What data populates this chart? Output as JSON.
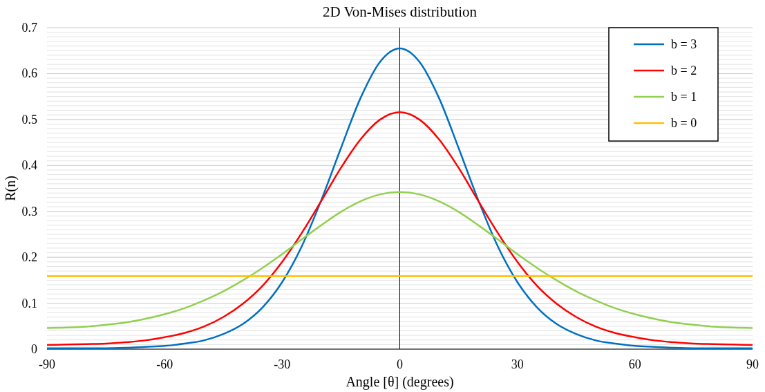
{
  "chart_data": {
    "type": "line",
    "title": "2D Von-Mises distribution",
    "xlabel": "Angle [θ] (degrees)",
    "ylabel": "R(n)",
    "x": [
      -90,
      -85,
      -80,
      -75,
      -70,
      -65,
      -60,
      -55,
      -50,
      -45,
      -40,
      -35,
      -30,
      -25,
      -20,
      -15,
      -10,
      -5,
      0,
      5,
      10,
      15,
      20,
      25,
      30,
      35,
      40,
      45,
      50,
      55,
      60,
      65,
      70,
      75,
      80,
      85,
      90
    ],
    "series": [
      {
        "name": "b = 3",
        "color": "#0070c0",
        "values": [
          0.002,
          0.002,
          0.002,
          0.002,
          0.003,
          0.005,
          0.007,
          0.012,
          0.019,
          0.033,
          0.055,
          0.091,
          0.146,
          0.224,
          0.325,
          0.438,
          0.547,
          0.626,
          0.655,
          0.626,
          0.547,
          0.438,
          0.325,
          0.224,
          0.146,
          0.091,
          0.055,
          0.033,
          0.019,
          0.012,
          0.007,
          0.005,
          0.003,
          0.002,
          0.002,
          0.002,
          0.002
        ]
      },
      {
        "name": "b = 2",
        "color": "#ff0000",
        "values": [
          0.009,
          0.01,
          0.011,
          0.012,
          0.015,
          0.019,
          0.026,
          0.035,
          0.049,
          0.07,
          0.099,
          0.138,
          0.19,
          0.253,
          0.323,
          0.395,
          0.457,
          0.5,
          0.516,
          0.5,
          0.457,
          0.395,
          0.323,
          0.253,
          0.19,
          0.138,
          0.099,
          0.07,
          0.049,
          0.035,
          0.026,
          0.019,
          0.015,
          0.012,
          0.011,
          0.01,
          0.009
        ]
      },
      {
        "name": "b = 1",
        "color": "#92d050",
        "values": [
          0.046,
          0.047,
          0.049,
          0.053,
          0.058,
          0.066,
          0.076,
          0.089,
          0.106,
          0.126,
          0.15,
          0.177,
          0.207,
          0.239,
          0.27,
          0.299,
          0.322,
          0.337,
          0.342,
          0.337,
          0.322,
          0.299,
          0.27,
          0.239,
          0.207,
          0.177,
          0.15,
          0.126,
          0.106,
          0.089,
          0.076,
          0.066,
          0.058,
          0.053,
          0.049,
          0.047,
          0.046
        ]
      },
      {
        "name": "b = 0",
        "color": "#ffc000",
        "values": [
          0.159,
          0.159,
          0.159,
          0.159,
          0.159,
          0.159,
          0.159,
          0.159,
          0.159,
          0.159,
          0.159,
          0.159,
          0.159,
          0.159,
          0.159,
          0.159,
          0.159,
          0.159,
          0.159,
          0.159,
          0.159,
          0.159,
          0.159,
          0.159,
          0.159,
          0.159,
          0.159,
          0.159,
          0.159,
          0.159,
          0.159,
          0.159,
          0.159,
          0.159,
          0.159,
          0.159,
          0.159
        ]
      }
    ],
    "xlim": [
      -90,
      90
    ],
    "xticks": [
      -90,
      -60,
      -30,
      0,
      30,
      60,
      90
    ],
    "ylim": [
      0,
      0.7
    ],
    "yticks": [
      0,
      0.1,
      0.2,
      0.3,
      0.4,
      0.5,
      0.6,
      0.7
    ],
    "grid": "y",
    "legend": "top right",
    "marker": "none",
    "line_style": "solid"
  }
}
